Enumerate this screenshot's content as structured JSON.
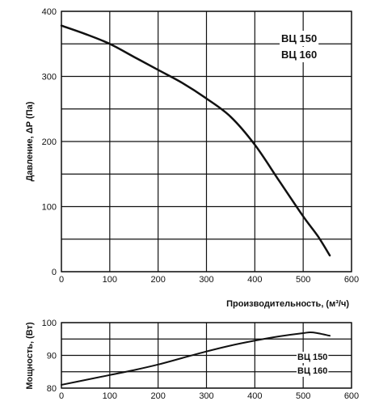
{
  "chart_data": [
    {
      "type": "line",
      "title": "",
      "xlabel": "Производительность, (м³/ч)",
      "ylabel": "Давление, ΔР (Па)",
      "xlim": [
        0,
        600
      ],
      "ylim": [
        0,
        400
      ],
      "x_ticks": [
        "0",
        "100",
        "200",
        "300",
        "400",
        "500",
        "600"
      ],
      "y_ticks": [
        "0",
        "100",
        "200",
        "300",
        "400"
      ],
      "grid": true,
      "annotations": [
        "ВЦ 150",
        "ВЦ 160"
      ],
      "series": [
        {
          "x": [
            0,
            50,
            100,
            150,
            200,
            250,
            300,
            350,
            400,
            450,
            500,
            530,
            555
          ],
          "y": [
            378,
            365,
            350,
            330,
            310,
            290,
            266,
            238,
            195,
            140,
            85,
            55,
            25
          ]
        }
      ]
    },
    {
      "type": "line",
      "title": "",
      "xlabel": "",
      "ylabel": "Мощность, (Вт)",
      "xlim": [
        0,
        600
      ],
      "ylim": [
        80,
        100
      ],
      "x_ticks": [
        "0",
        "100",
        "200",
        "300",
        "400",
        "500",
        "600"
      ],
      "y_ticks": [
        "80",
        "90",
        "100"
      ],
      "grid": true,
      "annotations": [
        "ВЦ 150",
        "ВЦ 160"
      ],
      "series": [
        {
          "x": [
            0,
            50,
            100,
            150,
            200,
            250,
            300,
            350,
            400,
            450,
            500,
            520,
            555
          ],
          "y": [
            81,
            82.5,
            84,
            85.5,
            87.2,
            89.2,
            91.2,
            93.0,
            94.5,
            95.8,
            96.8,
            97.0,
            96.0
          ]
        }
      ]
    }
  ]
}
